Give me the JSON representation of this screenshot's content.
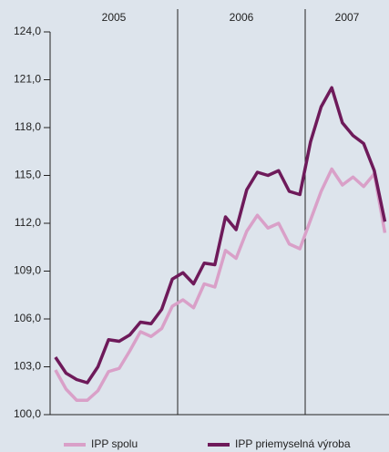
{
  "chart_data": {
    "type": "line",
    "year_labels": [
      "2005",
      "2006",
      "2007"
    ],
    "categories": [
      null,
      null,
      null,
      null,
      null,
      null,
      null,
      null,
      null,
      null,
      null,
      null,
      null,
      null,
      null,
      null,
      null,
      null,
      null,
      null,
      null,
      null,
      null,
      null,
      null,
      null,
      null,
      null,
      null,
      null,
      null,
      null
    ],
    "series": [
      {
        "name": "IPP spolu",
        "color": "#d9a0c8",
        "values": [
          102.8,
          101.6,
          100.9,
          100.9,
          101.5,
          102.7,
          102.9,
          104.0,
          105.2,
          104.9,
          105.4,
          106.8,
          107.2,
          106.7,
          108.2,
          108.0,
          110.3,
          109.8,
          111.5,
          112.5,
          111.7,
          112.0,
          110.7,
          110.4,
          112.2,
          114.0,
          115.4,
          114.4,
          114.9,
          114.3,
          115.1,
          111.4
        ]
      },
      {
        "name": "IPP priemyselná výroba",
        "color": "#6e1a5a",
        "values": [
          103.6,
          102.6,
          102.2,
          102.0,
          103.0,
          104.7,
          104.6,
          105.0,
          105.8,
          105.7,
          106.6,
          108.5,
          108.9,
          108.2,
          109.5,
          109.4,
          112.4,
          111.6,
          114.1,
          115.2,
          115.0,
          115.3,
          114.0,
          113.8,
          117.1,
          119.3,
          120.5,
          118.3,
          117.5,
          117.0,
          115.3,
          112.1
        ]
      }
    ],
    "ylim": [
      100,
      124
    ],
    "yticks": [
      {
        "value": 100,
        "label": "100,0"
      },
      {
        "value": 103,
        "label": "103,0"
      },
      {
        "value": 106,
        "label": "106,0"
      },
      {
        "value": 109,
        "label": "109,0"
      },
      {
        "value": 112,
        "label": "112,0"
      },
      {
        "value": 115,
        "label": "115,0"
      },
      {
        "value": 118,
        "label": "118,0"
      },
      {
        "value": 121,
        "label": "121,0"
      },
      {
        "value": 124,
        "label": "124,0"
      }
    ],
    "legend": "bottom"
  }
}
